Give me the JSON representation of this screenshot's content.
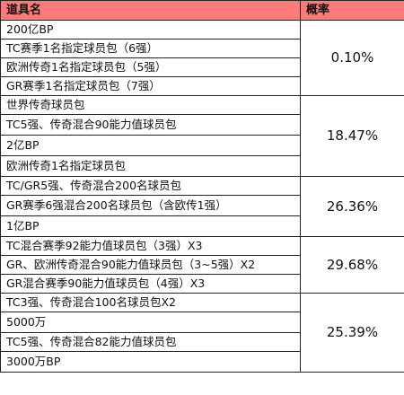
{
  "table": {
    "headers": {
      "item": "道具名",
      "probability": "概率"
    },
    "groups": [
      {
        "probability": "0.10%",
        "items": [
          "200亿BP",
          "TC赛季1名指定球员包（6强）",
          "欧洲传奇1名指定球员包（5强）",
          "GR赛季1名指定球员包（7强）"
        ]
      },
      {
        "probability": "18.47%",
        "items": [
          "世界传奇球员包",
          "TC5强、传奇混合90能力值球员包",
          "2亿BP",
          "欧洲传奇1名指定球员包"
        ]
      },
      {
        "probability": "26.36%",
        "items": [
          "TC/GR5强、传奇混合200名球员包",
          "GR赛季6强混合200名球员包（含欧传1强）",
          "1亿BP"
        ]
      },
      {
        "probability": "29.68%",
        "items": [
          "TC混合赛季92能力值球员包（3强）X3",
          "GR、欧洲传奇混合90能力值球员包（3~5强）X2",
          "GR混合赛季90能力值球员包（4强）X3"
        ]
      },
      {
        "probability": "25.39%",
        "items": [
          "TC3强、传奇混合100名球员包X2",
          "5000万",
          "TC5强、传奇混合82能力值球员包",
          "3000万BP"
        ]
      }
    ]
  },
  "colors": {
    "header_background": "#ff7b7b",
    "border": "#222222"
  }
}
